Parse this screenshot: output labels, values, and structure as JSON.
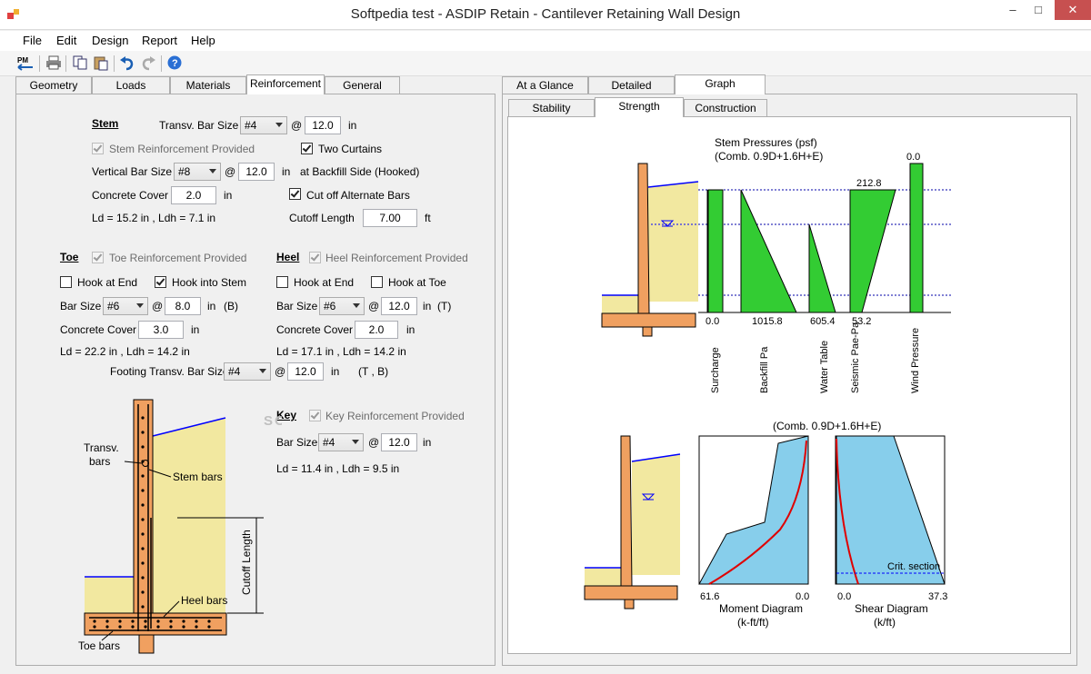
{
  "window": {
    "title": "Softpedia test - ASDIP Retain - Cantilever Retaining Wall Design"
  },
  "menu": [
    "File",
    "Edit",
    "Design",
    "Report",
    "Help"
  ],
  "toolbar": {
    "pm_label": "PM"
  },
  "left_tabs": [
    "Geometry",
    "Loads",
    "Materials",
    "Reinforcement",
    "General"
  ],
  "right_tabs": [
    "At a Glance",
    "Detailed",
    "Graph"
  ],
  "sub_tabs": [
    "Stability",
    "Strength",
    "Construction"
  ],
  "stem": {
    "heading": "Stem",
    "transv_label": "Transv. Bar Size",
    "transv_bar": "#4",
    "at": "@",
    "transv_spacing": "12.0",
    "in": "in",
    "provided_label": "Stem Reinforcement Provided",
    "two_curtains_label": "Two Curtains",
    "vertical_label": "Vertical Bar Size",
    "vertical_bar": "#8",
    "vertical_spacing": "12.0",
    "backfill_side": "at Backfill Side (Hooked)",
    "cover_label": "Concrete Cover",
    "cover": "2.0",
    "cutoff_alt_label": "Cut off Alternate Bars",
    "ld": "Ld = 15.2 in , Ldh = 7.1 in",
    "cutoff_length_label": "Cutoff Length",
    "cutoff_length": "7.00",
    "ft": "ft"
  },
  "toe": {
    "heading": "Toe",
    "provided_label": "Toe Reinforcement Provided",
    "hook_end_label": "Hook at End",
    "hook_stem_label": "Hook into Stem",
    "bar_label": "Bar Size",
    "bar": "#6",
    "spacing": "8.0",
    "suffix": "(B)",
    "cover_label": "Concrete Cover",
    "cover": "3.0",
    "ld": "Ld = 22.2 in , Ldh = 14.2 in"
  },
  "heel": {
    "heading": "Heel",
    "provided_label": "Heel Reinforcement Provided",
    "hook_end_label": "Hook at End",
    "hook_toe_label": "Hook at Toe",
    "bar_label": "Bar Size",
    "bar": "#6",
    "spacing": "12.0",
    "suffix": "(T)",
    "cover_label": "Concrete Cover",
    "cover": "2.0",
    "ld": "Ld = 17.1 in , Ldh = 14.2 in"
  },
  "footing": {
    "label": "Footing Transv. Bar Size",
    "bar": "#4",
    "spacing": "12.0",
    "suffix": "(T , B)"
  },
  "key": {
    "heading": "Key",
    "provided_label": "Key Reinforcement Provided",
    "bar_label": "Bar Size",
    "bar": "#4",
    "spacing": "12.0",
    "ld": "Ld = 11.4 in , Ldh = 9.5 in"
  },
  "diagram": {
    "transv": "Transv.",
    "bars": "bars",
    "stem_bars": "Stem bars",
    "heel_bars": "Heel bars",
    "toe_bars": "Toe bars",
    "cutoff_length": "Cutoff Length",
    "watermark": "SOFTPEDIA"
  },
  "graph": {
    "title1": "Stem Pressures (psf)",
    "title2": "(Comb. 0.9D+1.6H+E)",
    "values": {
      "surcharge": "0.0",
      "backfill": "1015.8",
      "water": "605.4",
      "seismic_bottom": "53.2",
      "seismic_top": "212.8",
      "wind": "0.0"
    },
    "labels": [
      "Surcharge",
      "Backfill Pa",
      "Water Table",
      "Seismic Pae-Pa",
      "Wind Pressure"
    ],
    "comb": "(Comb. 0.9D+1.6H+E)",
    "moment": {
      "left": "61.6",
      "right": "0.0",
      "title": "Moment Diagram",
      "unit": "(k-ft/ft)"
    },
    "shear": {
      "left": "0.0",
      "right": "37.3",
      "title": "Shear Diagram",
      "unit": "(k/ft)",
      "crit": "Crit. section"
    }
  },
  "colors": {
    "concrete": "#f0a060",
    "soil": "#f2e8a0",
    "pressure": "#33cc33",
    "diagram": "#87ceeb",
    "water": "#0000ff"
  }
}
